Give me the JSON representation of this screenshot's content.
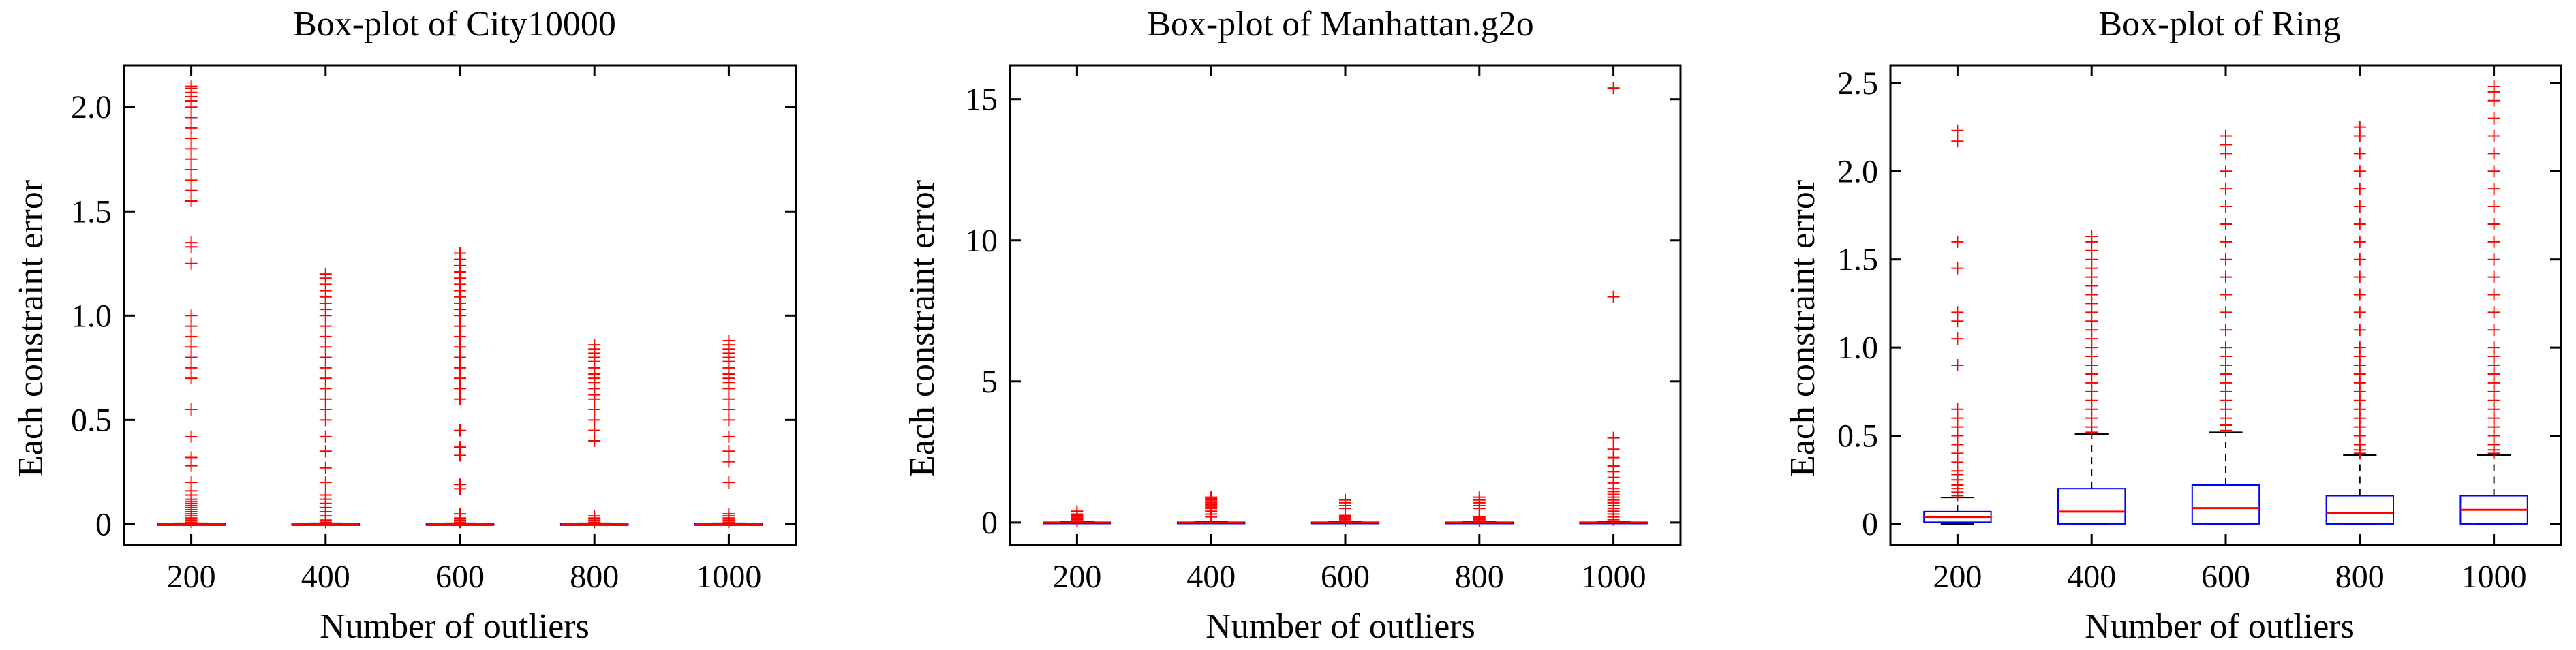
{
  "colors": {
    "outlier": "#ff0000",
    "box": "#0000ff",
    "median": "#ff0000",
    "whisker": "#000000",
    "axis": "#000000"
  },
  "chart_data": [
    {
      "type": "box",
      "title": "Box-plot of City10000",
      "xlabel": "Number of outliers",
      "ylabel": "Each constraint error",
      "categories": [
        "200",
        "400",
        "600",
        "800",
        "1000"
      ],
      "ylim": [
        -0.1,
        2.2
      ],
      "yticks": [
        0,
        0.5,
        1,
        1.5,
        2
      ],
      "ytick_labels": [
        "0",
        "0.5",
        "1.0",
        "1.5",
        "2.0"
      ],
      "boxes": [
        {
          "q1": 0,
          "median": 0,
          "q3": 0.002,
          "whisker_low": 0,
          "whisker_high": 0.005,
          "outliers": [
            0.01,
            0.02,
            0.03,
            0.04,
            0.05,
            0.06,
            0.07,
            0.08,
            0.09,
            0.1,
            0.11,
            0.12,
            0.14,
            0.16,
            0.2,
            0.28,
            0.32,
            0.42,
            0.55,
            0.7,
            0.75,
            0.8,
            0.85,
            0.9,
            0.95,
            1.0,
            1.25,
            1.33,
            1.35,
            1.55,
            1.6,
            1.65,
            1.7,
            1.75,
            1.8,
            1.85,
            1.9,
            1.95,
            2.0,
            2.03,
            2.05,
            2.07,
            2.09,
            2.1
          ]
        },
        {
          "q1": 0,
          "median": 0,
          "q3": 0.002,
          "whisker_low": 0,
          "whisker_high": 0.005,
          "outliers": [
            0.01,
            0.02,
            0.04,
            0.06,
            0.08,
            0.1,
            0.12,
            0.14,
            0.2,
            0.27,
            0.35,
            0.42,
            0.5,
            0.55,
            0.6,
            0.65,
            0.7,
            0.75,
            0.8,
            0.85,
            0.9,
            0.95,
            1.0,
            1.03,
            1.06,
            1.09,
            1.12,
            1.15,
            1.18,
            1.2
          ]
        },
        {
          "q1": 0,
          "median": 0,
          "q3": 0.002,
          "whisker_low": 0,
          "whisker_high": 0.005,
          "outliers": [
            0.01,
            0.02,
            0.03,
            0.05,
            0.17,
            0.19,
            0.33,
            0.37,
            0.45,
            0.6,
            0.65,
            0.7,
            0.75,
            0.8,
            0.85,
            0.9,
            0.95,
            1.0,
            1.03,
            1.06,
            1.09,
            1.12,
            1.15,
            1.18,
            1.21,
            1.24,
            1.27,
            1.3
          ]
        },
        {
          "q1": 0,
          "median": 0,
          "q3": 0.002,
          "whisker_low": 0,
          "whisker_high": 0.005,
          "outliers": [
            0.01,
            0.02,
            0.03,
            0.04,
            0.4,
            0.45,
            0.5,
            0.55,
            0.6,
            0.62,
            0.65,
            0.68,
            0.7,
            0.72,
            0.75,
            0.78,
            0.8,
            0.82,
            0.84,
            0.86
          ]
        },
        {
          "q1": 0,
          "median": 0,
          "q3": 0.002,
          "whisker_low": 0,
          "whisker_high": 0.005,
          "outliers": [
            0.01,
            0.02,
            0.03,
            0.04,
            0.05,
            0.2,
            0.3,
            0.35,
            0.42,
            0.5,
            0.55,
            0.6,
            0.65,
            0.68,
            0.7,
            0.72,
            0.75,
            0.78,
            0.8,
            0.82,
            0.84,
            0.86,
            0.88
          ]
        }
      ]
    },
    {
      "type": "box",
      "title": "Box-plot of Manhattan.g2o",
      "xlabel": "Number of outliers",
      "ylabel": "Each constraint error",
      "categories": [
        "200",
        "400",
        "600",
        "800",
        "1000"
      ],
      "ylim": [
        -0.8,
        16.2
      ],
      "yticks": [
        0,
        5,
        10,
        15
      ],
      "ytick_labels": [
        "0",
        "5",
        "10",
        "15"
      ],
      "boxes": [
        {
          "q1": 0,
          "median": 0,
          "q3": 0.01,
          "whisker_low": 0,
          "whisker_high": 0.02,
          "outliers": [
            0.05,
            0.1,
            0.15,
            0.2,
            0.25,
            0.3,
            0.4
          ]
        },
        {
          "q1": 0,
          "median": 0,
          "q3": 0.01,
          "whisker_low": 0,
          "whisker_high": 0.02,
          "outliers": [
            0.2,
            0.3,
            0.4,
            0.5,
            0.55,
            0.6,
            0.65,
            0.7,
            0.75,
            0.8,
            0.85,
            0.9
          ]
        },
        {
          "q1": 0,
          "median": 0,
          "q3": 0.01,
          "whisker_low": 0,
          "whisker_high": 0.02,
          "outliers": [
            0.05,
            0.1,
            0.15,
            0.2,
            0.25,
            0.5,
            0.6,
            0.7,
            0.8
          ]
        },
        {
          "q1": 0,
          "median": 0,
          "q3": 0.01,
          "whisker_low": 0,
          "whisker_high": 0.02,
          "outliers": [
            0.05,
            0.1,
            0.15,
            0.2,
            0.5,
            0.6,
            0.7,
            0.8,
            0.9
          ]
        },
        {
          "q1": 0,
          "median": 0,
          "q3": 0.01,
          "whisker_low": 0,
          "whisker_high": 0.02,
          "outliers": [
            0.1,
            0.2,
            0.3,
            0.4,
            0.5,
            0.6,
            0.7,
            0.8,
            0.9,
            1.0,
            1.1,
            1.2,
            1.4,
            1.6,
            1.8,
            2.0,
            2.3,
            2.6,
            3.0,
            8.0,
            15.4
          ]
        }
      ]
    },
    {
      "type": "box",
      "title": "Box-plot of Ring",
      "xlabel": "Number of outliers",
      "ylabel": "Each constraint error",
      "categories": [
        "200",
        "400",
        "600",
        "800",
        "1000"
      ],
      "ylim": [
        -0.12,
        2.6
      ],
      "yticks": [
        0,
        0.5,
        1,
        1.5,
        2,
        2.5
      ],
      "ytick_labels": [
        "0",
        "0.5",
        "1.0",
        "1.5",
        "2.0",
        "2.5"
      ],
      "boxes": [
        {
          "q1": 0.01,
          "median": 0.04,
          "q3": 0.07,
          "whisker_low": 0,
          "whisker_high": 0.15,
          "outliers": [
            0.16,
            0.18,
            0.2,
            0.22,
            0.25,
            0.28,
            0.3,
            0.35,
            0.4,
            0.45,
            0.5,
            0.55,
            0.6,
            0.65,
            0.9,
            1.05,
            1.15,
            1.2,
            1.45,
            1.6,
            2.17,
            2.23
          ]
        },
        {
          "q1": 0,
          "median": 0.07,
          "q3": 0.2,
          "whisker_low": 0,
          "whisker_high": 0.51,
          "outliers": [
            0.52,
            0.55,
            0.6,
            0.65,
            0.7,
            0.75,
            0.8,
            0.85,
            0.9,
            0.95,
            1.0,
            1.05,
            1.1,
            1.15,
            1.2,
            1.25,
            1.3,
            1.35,
            1.4,
            1.45,
            1.5,
            1.55,
            1.6,
            1.63
          ]
        },
        {
          "q1": 0,
          "median": 0.09,
          "q3": 0.22,
          "whisker_low": 0,
          "whisker_high": 0.52,
          "outliers": [
            0.53,
            0.56,
            0.6,
            0.65,
            0.7,
            0.75,
            0.8,
            0.85,
            0.9,
            0.95,
            1.0,
            1.1,
            1.2,
            1.3,
            1.4,
            1.5,
            1.6,
            1.7,
            1.8,
            1.9,
            2.0,
            2.1,
            2.15,
            2.2
          ]
        },
        {
          "q1": 0,
          "median": 0.06,
          "q3": 0.16,
          "whisker_low": 0,
          "whisker_high": 0.39,
          "outliers": [
            0.4,
            0.42,
            0.45,
            0.5,
            0.55,
            0.6,
            0.65,
            0.7,
            0.75,
            0.8,
            0.85,
            0.9,
            0.95,
            1.0,
            1.1,
            1.2,
            1.3,
            1.4,
            1.5,
            1.6,
            1.7,
            1.8,
            1.9,
            2.0,
            2.1,
            2.2,
            2.25
          ]
        },
        {
          "q1": 0,
          "median": 0.08,
          "q3": 0.16,
          "whisker_low": 0,
          "whisker_high": 0.39,
          "outliers": [
            0.4,
            0.42,
            0.45,
            0.5,
            0.55,
            0.6,
            0.65,
            0.7,
            0.75,
            0.8,
            0.85,
            0.9,
            0.95,
            1.0,
            1.1,
            1.2,
            1.3,
            1.4,
            1.5,
            1.6,
            1.7,
            1.8,
            1.9,
            2.0,
            2.1,
            2.2,
            2.3,
            2.4,
            2.45,
            2.48
          ]
        }
      ]
    }
  ]
}
